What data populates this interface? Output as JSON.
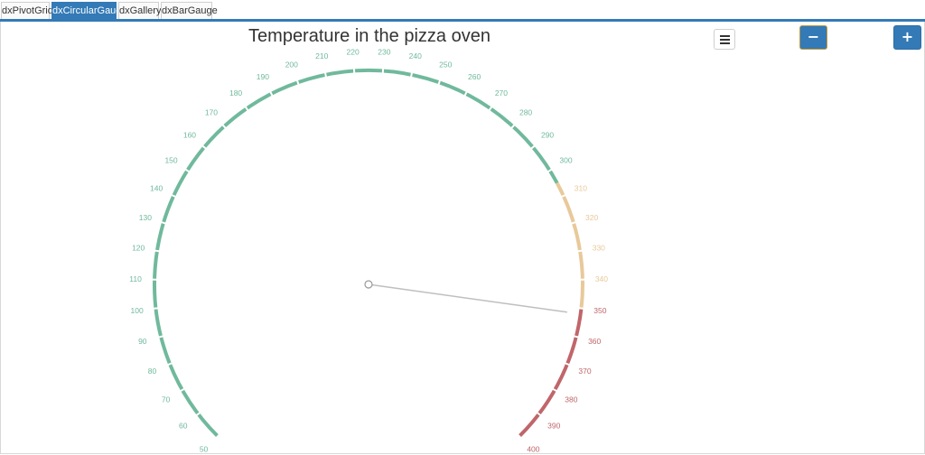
{
  "tabs": [
    {
      "label": "dxPivotGrid",
      "active": false
    },
    {
      "label": "dxCircularGauge",
      "active": true
    },
    {
      "label": "dxGallery",
      "active": false
    },
    {
      "label": "dxBarGauge",
      "active": false
    }
  ],
  "gauge": {
    "title": "Temperature in the pizza oven",
    "value": 352,
    "scale": {
      "start": 50,
      "end": 400,
      "tick_interval": 10
    },
    "ranges": [
      {
        "start": 50,
        "end": 305,
        "color": "#70b99c"
      },
      {
        "start": 305,
        "end": 350,
        "color": "#e8c99a"
      },
      {
        "start": 350,
        "end": 400,
        "color": "#c0666a"
      }
    ]
  },
  "toolbar": {
    "minus_label": "−",
    "plus_label": "+"
  },
  "icons": {
    "menu": "hamburger-menu-icon"
  }
}
